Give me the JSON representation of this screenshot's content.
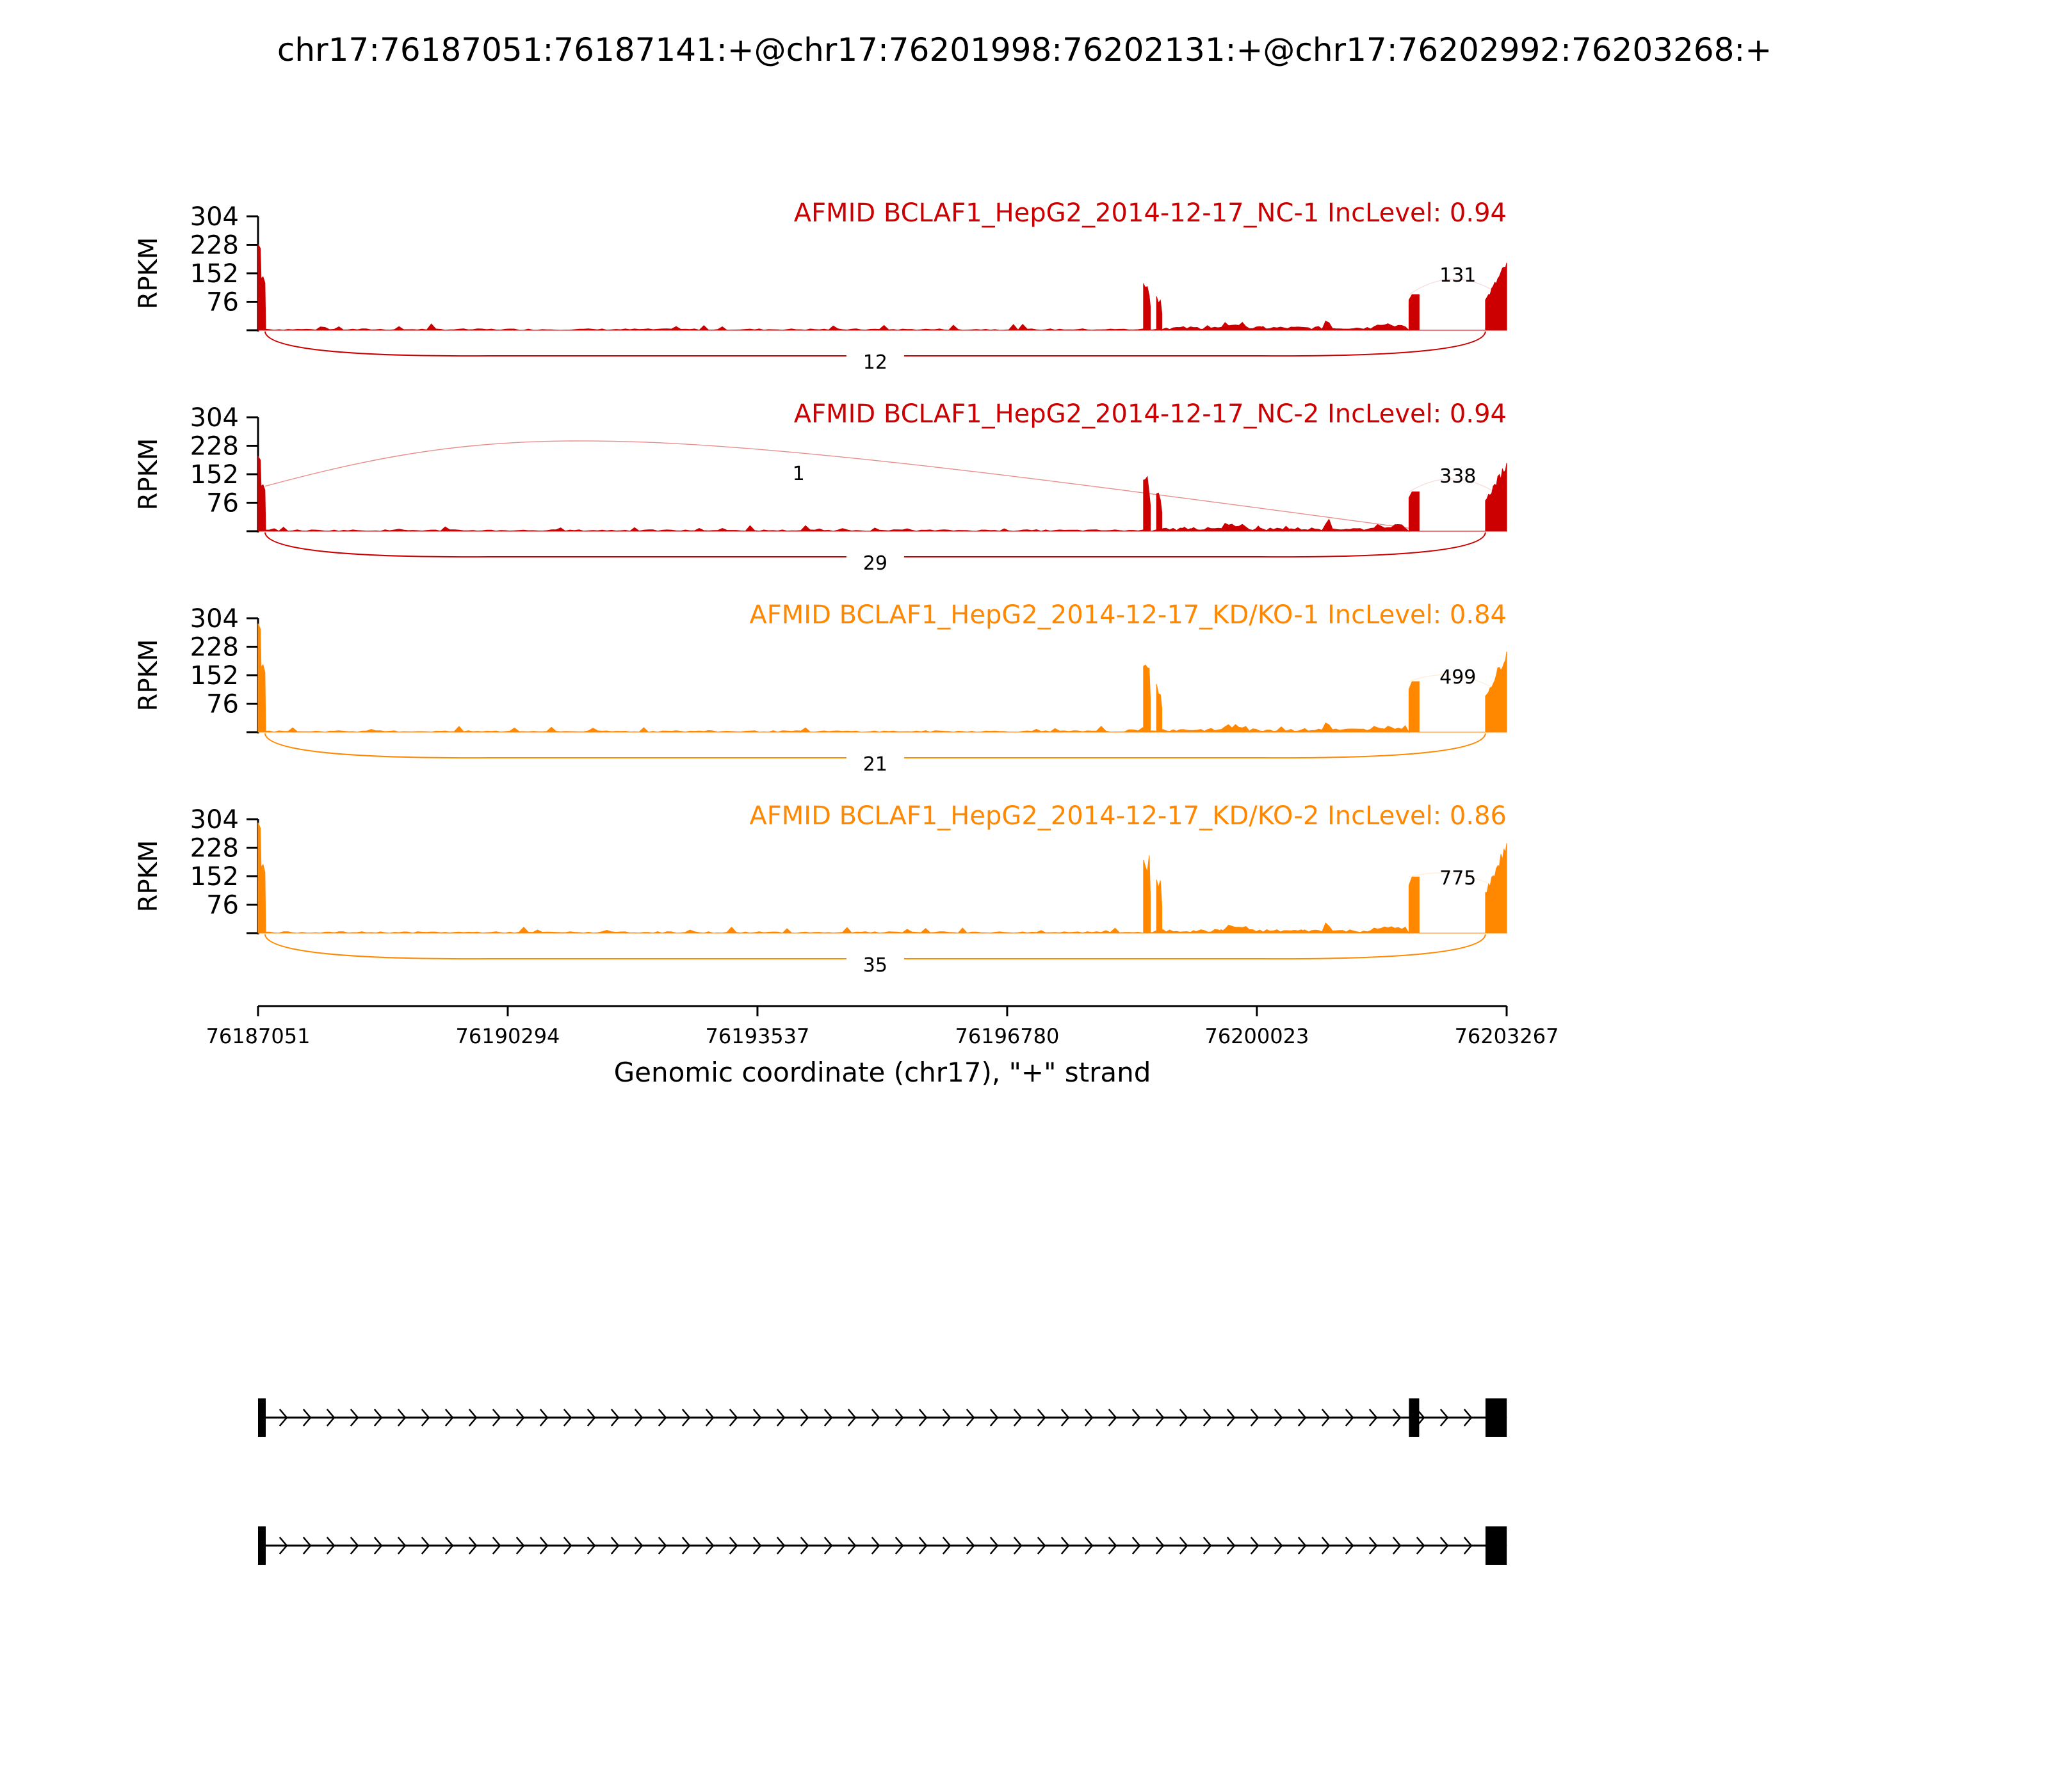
{
  "title": "chr17:76187051:76187141:+@chr17:76201998:76202131:+@chr17:76202992:76203268:+",
  "colors": {
    "nc": "#cc0000",
    "kd": "#ff8800",
    "gene": "#000000",
    "axis": "#000000"
  },
  "chart_data": {
    "type": "area",
    "title": "chr17:76187051:76187141:+@chr17:76201998:76202131:+@chr17:76202992:76203268:+",
    "xlabel": "Genomic coordinate (chr17), \"+\" strand",
    "xlim": [
      76187051,
      76203267
    ],
    "x_ticks": [
      "76187051",
      "76190294",
      "76193537",
      "76196780",
      "76200023",
      "76203267"
    ],
    "ylabel": "RPKM",
    "ylim": [
      0,
      304
    ],
    "y_ticks": [
      "304",
      "228",
      "152",
      "76"
    ],
    "exons": [
      {
        "name": "exon1",
        "start": 76187051,
        "end": 76187141
      },
      {
        "name": "exon2",
        "start": 76201998,
        "end": 76202131
      },
      {
        "name": "exon3",
        "start": 76202992,
        "end": 76203268
      }
    ],
    "series": [
      {
        "title": "AFMID BCLAF1_HepG2_2014-12-17_NC-1 IncLevel: 0.94",
        "group": "nc",
        "exon_levels": [
          230,
          95,
          180
        ],
        "junctions": [
          {
            "from": 76201998,
            "to": 76203268,
            "label": "131",
            "side": "above"
          },
          {
            "from": 76187141,
            "to": 76202992,
            "label": "12",
            "side": "below"
          }
        ]
      },
      {
        "title": "AFMID BCLAF1_HepG2_2014-12-17_NC-2 IncLevel: 0.94",
        "group": "nc",
        "exon_levels": [
          200,
          105,
          182
        ],
        "junctions": [
          {
            "from": 76187141,
            "to": 76201998,
            "label": "1",
            "side": "above"
          },
          {
            "from": 76201998,
            "to": 76203268,
            "label": "338",
            "side": "above"
          },
          {
            "from": 76187141,
            "to": 76202992,
            "label": "29",
            "side": "below"
          }
        ]
      },
      {
        "title": "AFMID BCLAF1_HepG2_2014-12-17_KD/KO-1 IncLevel: 0.84",
        "group": "kd",
        "exon_levels": [
          290,
          135,
          215
        ],
        "junctions": [
          {
            "from": 76201998,
            "to": 76203268,
            "label": "499",
            "side": "above"
          },
          {
            "from": 76187141,
            "to": 76202992,
            "label": "21",
            "side": "below"
          }
        ]
      },
      {
        "title": "AFMID BCLAF1_HepG2_2014-12-17_KD/KO-2 IncLevel: 0.86",
        "group": "kd",
        "exon_levels": [
          295,
          150,
          240
        ],
        "junctions": [
          {
            "from": 76201998,
            "to": 76203268,
            "label": "775",
            "side": "above"
          },
          {
            "from": 76187141,
            "to": 76202992,
            "label": "35",
            "side": "below"
          }
        ]
      }
    ],
    "isoforms": [
      {
        "name": "inclusion",
        "exons": [
          "exon1",
          "exon2",
          "exon3"
        ]
      },
      {
        "name": "skipping",
        "exons": [
          "exon1",
          "exon3"
        ]
      }
    ]
  }
}
